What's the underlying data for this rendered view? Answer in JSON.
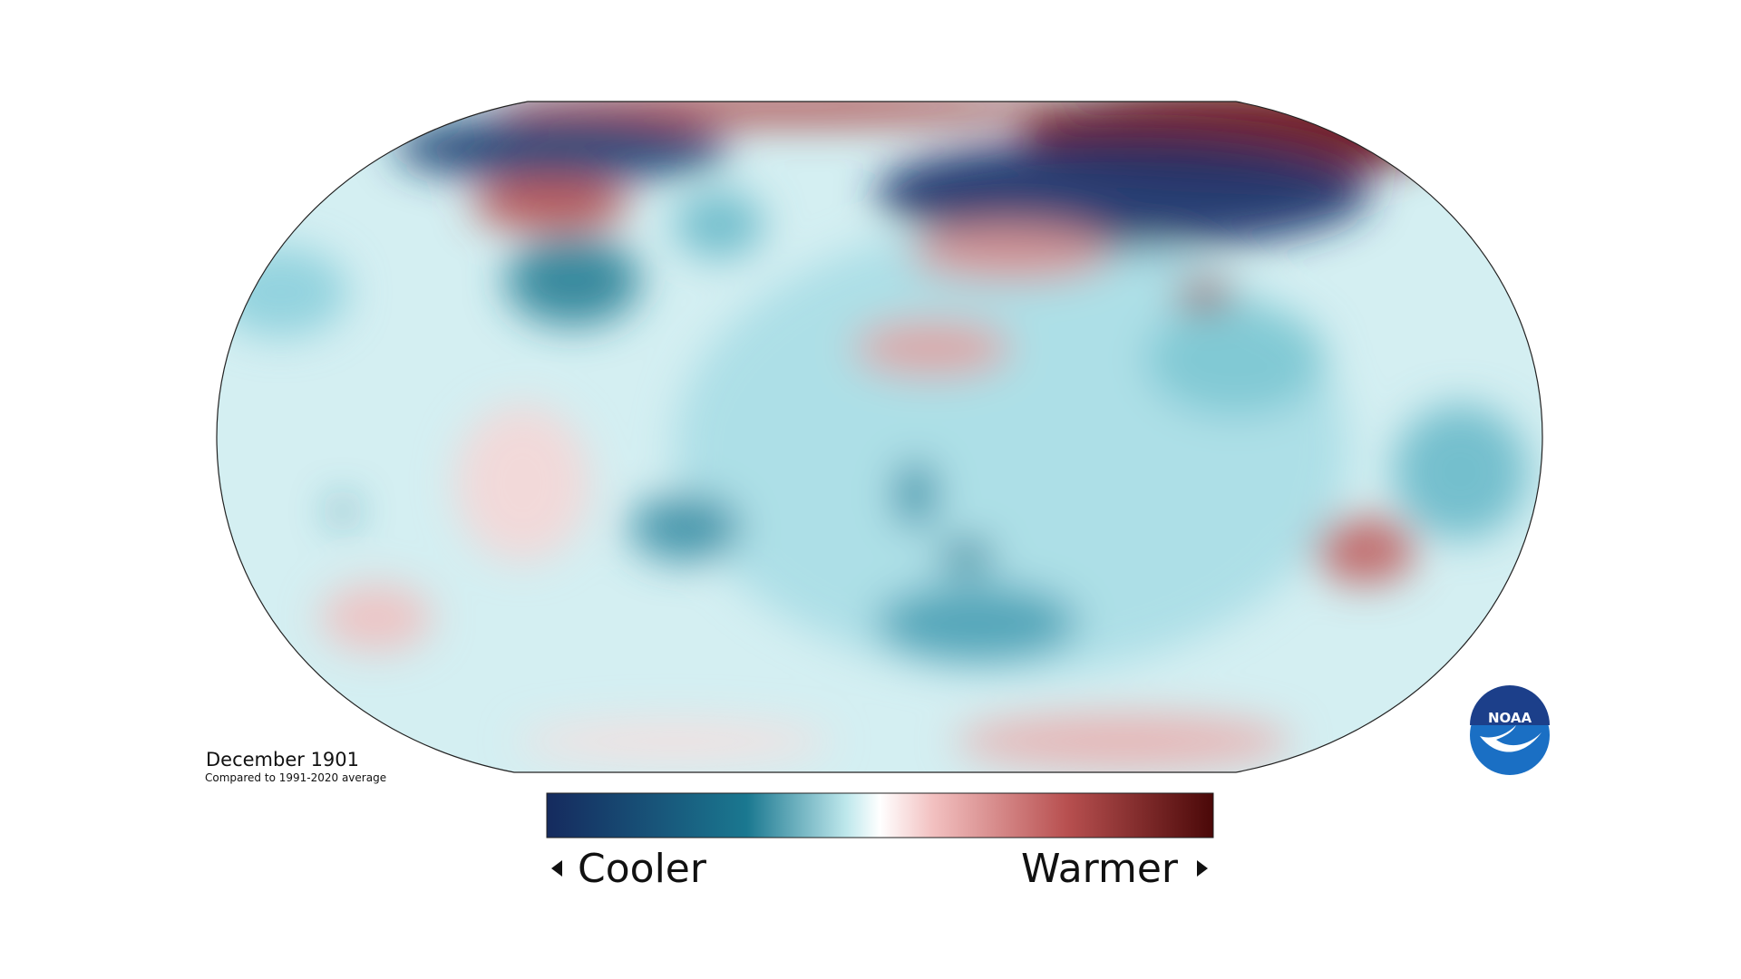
{
  "map": {
    "title": "December 1901",
    "subtitle": "Compared to 1991-2020 average"
  },
  "legend": {
    "low_label": "Cooler",
    "high_label": "Warmer"
  },
  "logo": {
    "text": "NOAA"
  }
}
